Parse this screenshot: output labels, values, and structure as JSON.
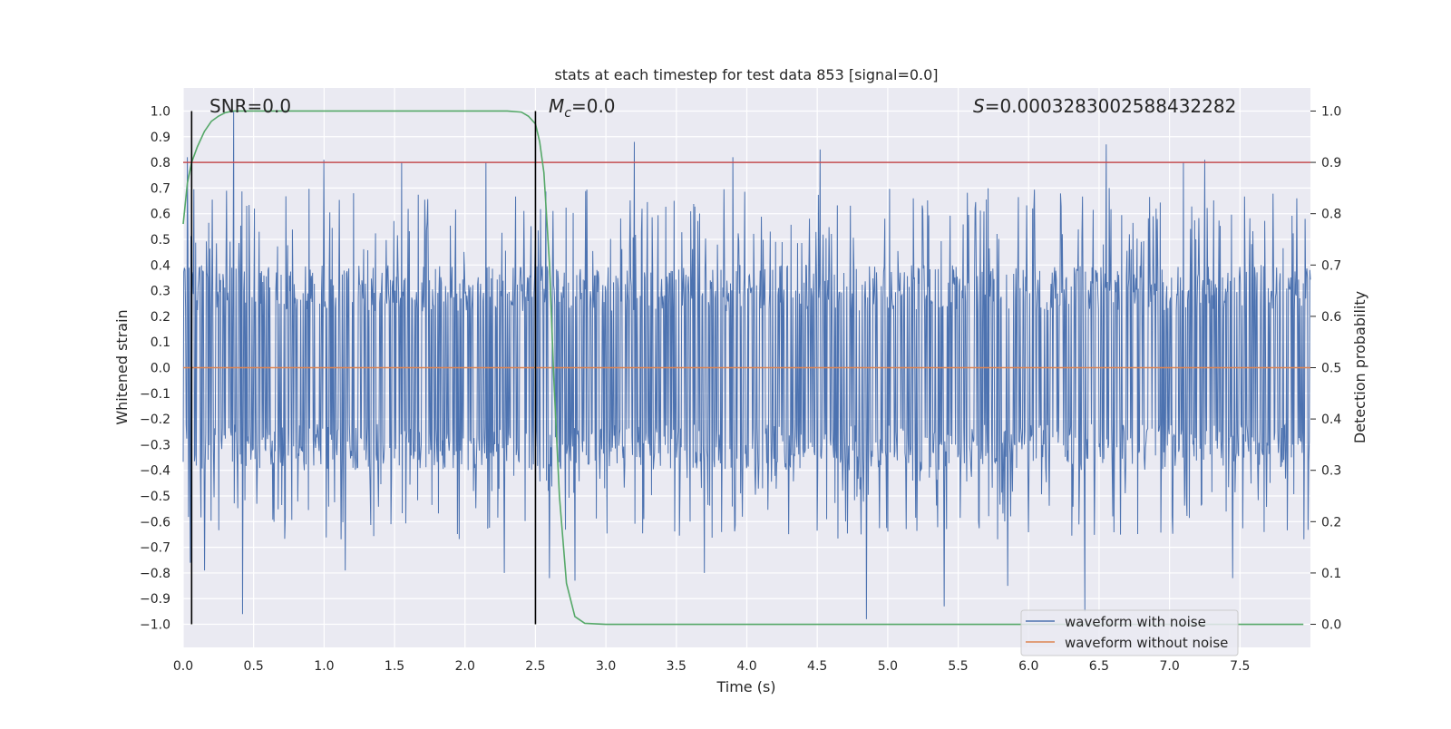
{
  "chart_data": {
    "type": "line",
    "title": "stats at each timestep for test data 853 [signal=0.0]",
    "xlabel": "Time (s)",
    "ylabel_left": "Whitened strain",
    "ylabel_right": "Detection probability",
    "xlim": [
      0.0,
      8.0
    ],
    "ylim_left": [
      -1.09,
      1.09
    ],
    "ylim_right": [
      -0.045,
      1.045
    ],
    "x_ticks": [
      0.0,
      0.5,
      1.0,
      1.5,
      2.0,
      2.5,
      3.0,
      3.5,
      4.0,
      4.5,
      5.0,
      5.5,
      6.0,
      6.5,
      7.0,
      7.5
    ],
    "x_tick_labels": [
      "0.0",
      "0.5",
      "1.0",
      "1.5",
      "2.0",
      "2.5",
      "3.0",
      "3.5",
      "4.0",
      "4.5",
      "5.0",
      "5.5",
      "6.0",
      "6.5",
      "7.0",
      "7.5"
    ],
    "y_ticks_left": [
      1.0,
      0.9,
      0.8,
      0.7,
      0.6,
      0.5,
      0.4,
      0.3,
      0.2,
      0.1,
      0.0,
      -0.1,
      -0.2,
      -0.3,
      -0.4,
      -0.5,
      -0.6,
      -0.7,
      -0.8,
      -0.9,
      -1.0
    ],
    "y_tick_labels_left": [
      "1.0",
      "0.9",
      "0.8",
      "0.7",
      "0.6",
      "0.5",
      "0.4",
      "0.3",
      "0.2",
      "0.1",
      "0.0",
      "−0.1",
      "−0.2",
      "−0.3",
      "−0.4",
      "−0.5",
      "−0.6",
      "−0.7",
      "−0.8",
      "−0.9",
      "−1.0"
    ],
    "y_ticks_right": [
      1.0,
      0.9,
      0.8,
      0.7,
      0.6,
      0.5,
      0.4,
      0.3,
      0.2,
      0.1,
      0.0
    ],
    "y_tick_labels_right": [
      "1.0",
      "0.9",
      "0.8",
      "0.7",
      "0.6",
      "0.5",
      "0.4",
      "0.3",
      "0.2",
      "0.1",
      "0.0"
    ],
    "grid": true,
    "annotations": {
      "snr": "SNR=0.0",
      "mc_symbol": "M",
      "mc_sub": "c",
      "mc_value": "=0.0",
      "s_symbol": "S",
      "s_value": "=0.0003283002588432282"
    },
    "vertical_lines_x": [
      0.06,
      2.5
    ],
    "vertical_lines_range": [
      -1.0,
      1.0
    ],
    "threshold": {
      "axis": "right",
      "value": 0.9
    },
    "series": [
      {
        "name": "waveform with noise",
        "axis": "left",
        "x_range": [
          0.0,
          8.0
        ],
        "typical_envelope_min": -0.5,
        "typical_envelope_max": 0.4,
        "peaks_up": [
          [
            0.03,
            0.82
          ],
          [
            0.36,
            1.0
          ],
          [
            1.0,
            0.81
          ],
          [
            1.55,
            0.8
          ],
          [
            2.15,
            0.8
          ],
          [
            3.2,
            0.88
          ],
          [
            3.9,
            0.82
          ],
          [
            4.52,
            0.85
          ],
          [
            6.55,
            0.87
          ],
          [
            7.1,
            0.8
          ],
          [
            7.25,
            0.81
          ],
          [
            7.45,
            0.77
          ]
        ],
        "peaks_down": [
          [
            0.05,
            -0.76
          ],
          [
            0.15,
            -0.79
          ],
          [
            0.42,
            -0.96
          ],
          [
            1.15,
            -0.79
          ],
          [
            2.28,
            -0.8
          ],
          [
            2.6,
            -0.82
          ],
          [
            2.78,
            -0.83
          ],
          [
            3.7,
            -0.8
          ],
          [
            4.85,
            -0.98
          ],
          [
            5.4,
            -0.93
          ],
          [
            5.85,
            -0.85
          ],
          [
            6.4,
            -0.95
          ],
          [
            7.45,
            -0.82
          ]
        ]
      },
      {
        "name": "waveform without noise",
        "axis": "left",
        "constant_value": 0.0
      },
      {
        "name": "detection probability",
        "axis": "right",
        "x": [
          0.0,
          0.03,
          0.06,
          0.1,
          0.15,
          0.2,
          0.25,
          0.3,
          0.35,
          0.5,
          1.0,
          1.5,
          2.0,
          2.3,
          2.4,
          2.45,
          2.5,
          2.53,
          2.56,
          2.6,
          2.63,
          2.67,
          2.72,
          2.78,
          2.85,
          3.0,
          4.0,
          5.0,
          6.0,
          7.0,
          7.95
        ],
        "values": [
          0.78,
          0.86,
          0.9,
          0.93,
          0.96,
          0.98,
          0.99,
          0.997,
          1.0,
          1.0,
          1.0,
          1.0,
          1.0,
          1.0,
          0.998,
          0.99,
          0.975,
          0.94,
          0.88,
          0.7,
          0.48,
          0.25,
          0.08,
          0.015,
          0.002,
          0.0,
          0.0,
          0.0,
          0.0,
          0.0,
          0.0
        ]
      }
    ],
    "legend": {
      "location": "lower right",
      "entries": [
        "waveform with noise",
        "waveform without noise"
      ]
    },
    "colors": {
      "noise": "#4c72b0",
      "clean": "#dd8452",
      "prob": "#55a868",
      "threshold": "#c44e52",
      "vlines": "#000000",
      "axes_bg": "#eaeaf2",
      "grid": "#ffffff"
    }
  }
}
